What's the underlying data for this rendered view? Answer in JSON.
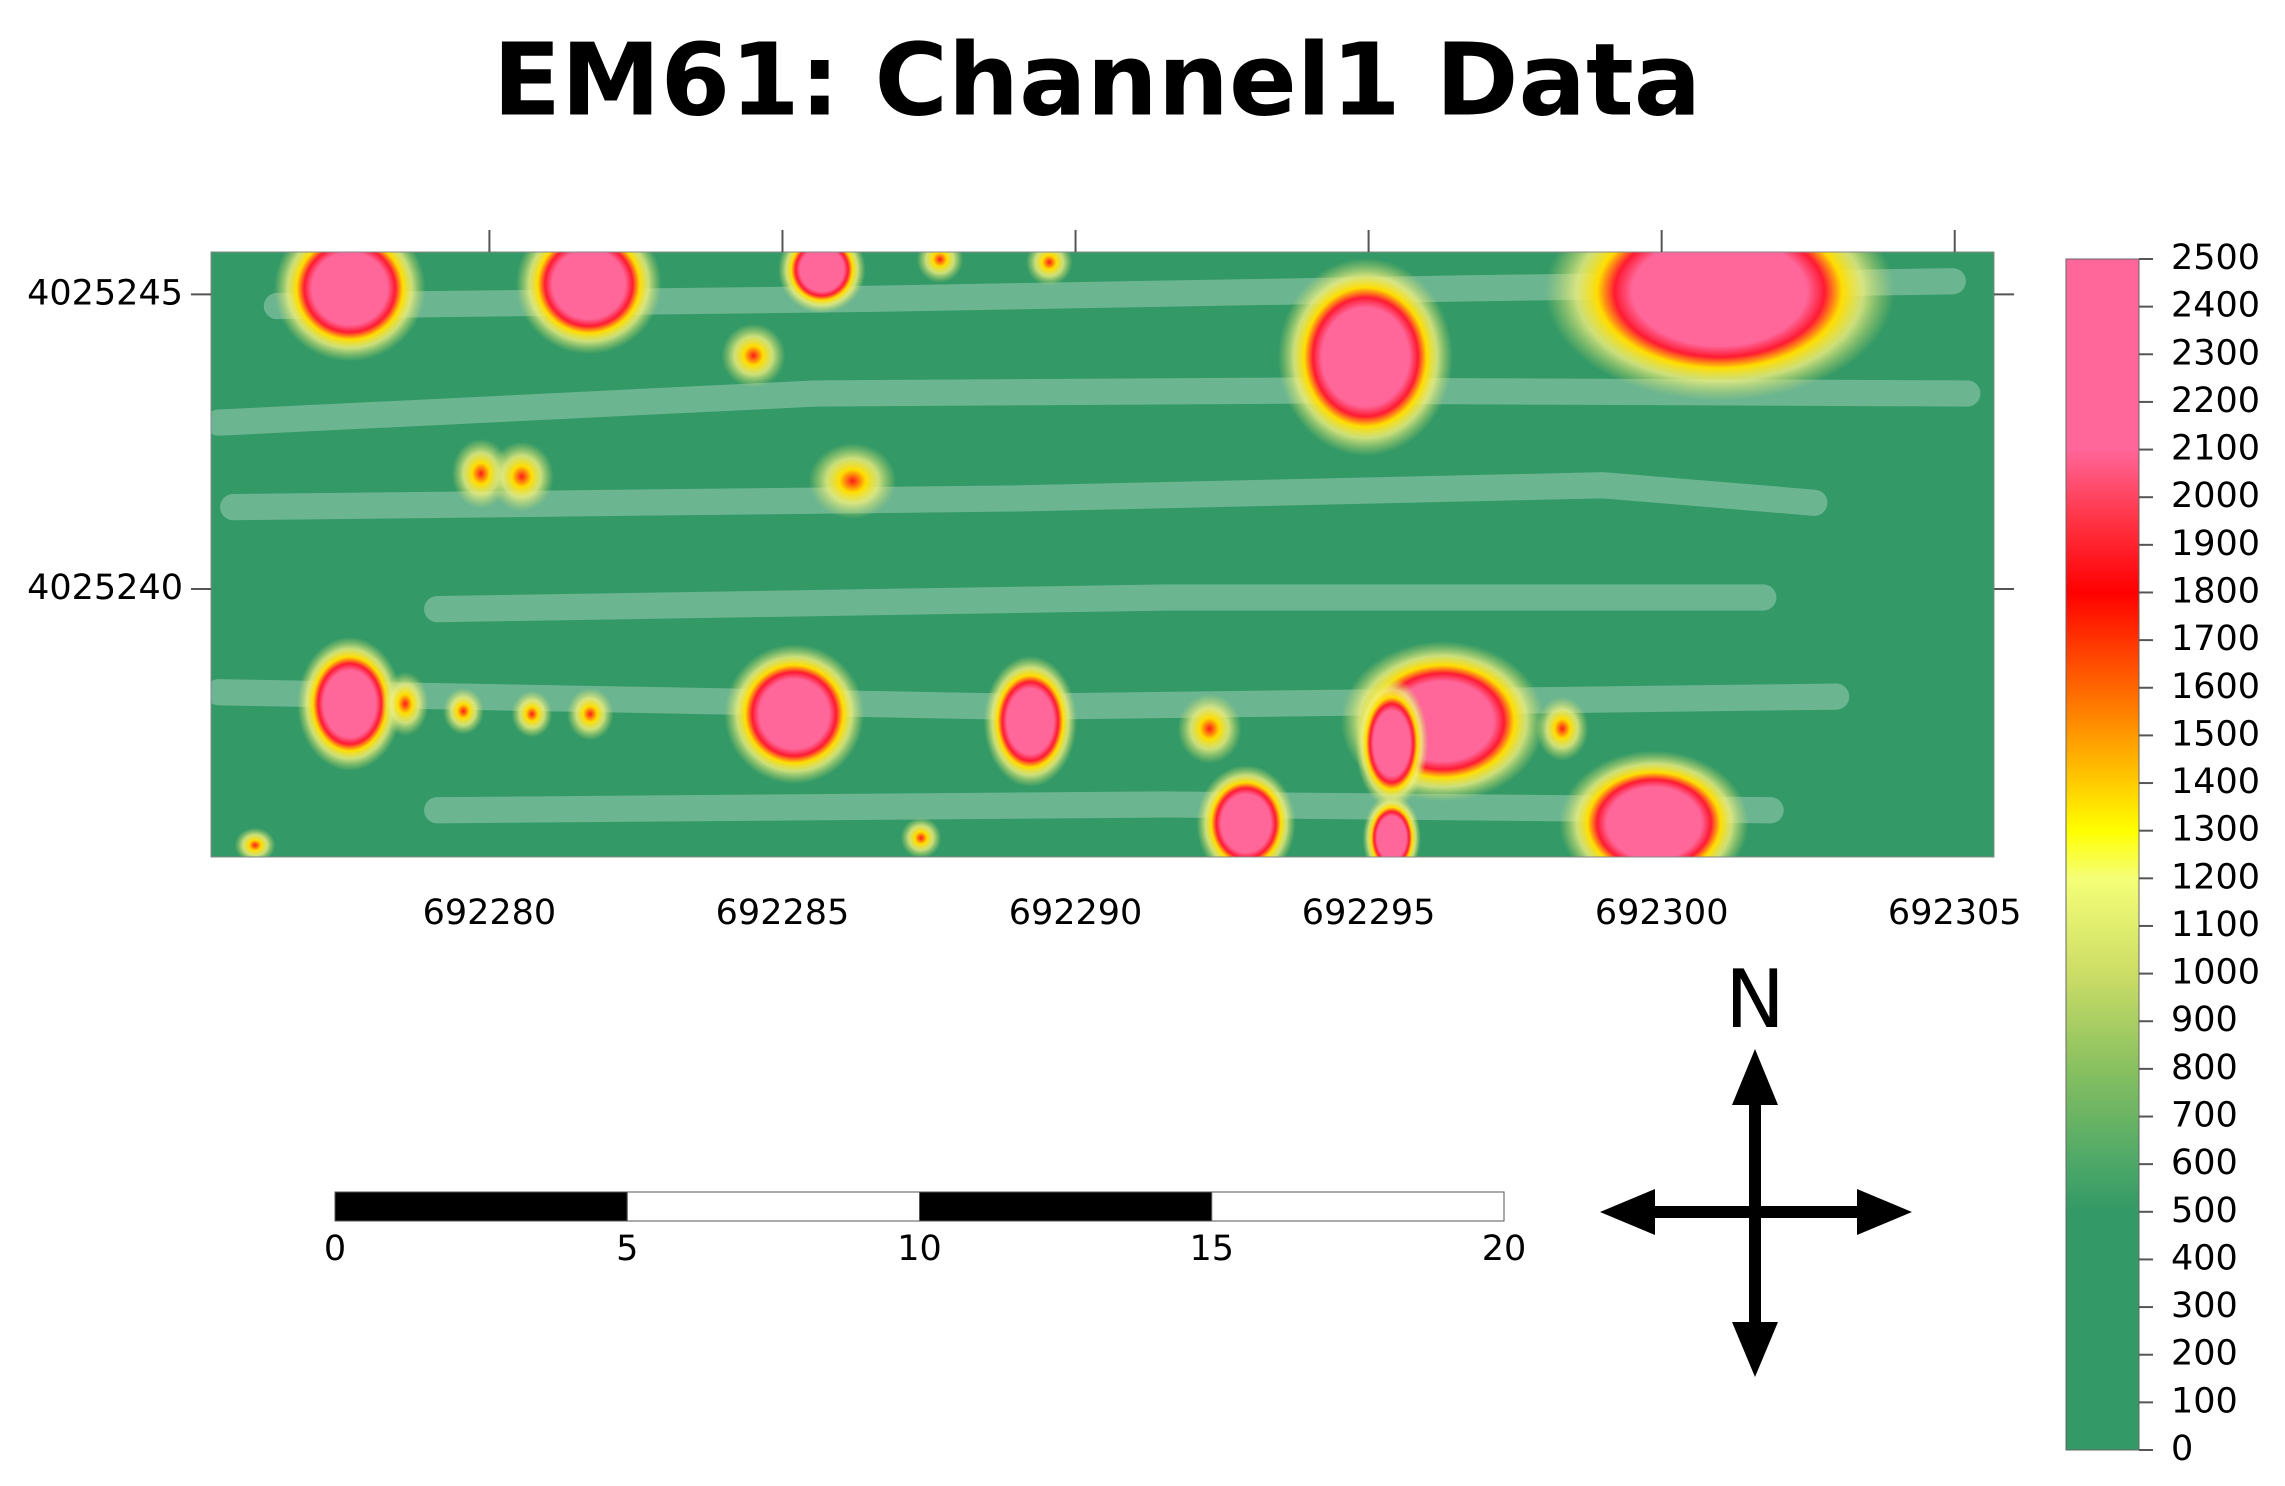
{
  "title": "EM61: Channel1 Data",
  "map": {
    "xlim": [
      692275.25,
      692305.67
    ],
    "ylim": [
      4025235.45,
      4025245.72
    ],
    "xticks": [
      692280,
      692285,
      692290,
      692295,
      692300,
      692305
    ],
    "yticks": [
      4025240,
      4025245
    ]
  },
  "colorbar": {
    "lim": [
      0,
      2500
    ],
    "ticks": [
      0,
      100,
      200,
      300,
      400,
      500,
      600,
      700,
      800,
      900,
      1000,
      1100,
      1200,
      1300,
      1400,
      1500,
      1600,
      1700,
      1800,
      1900,
      2000,
      2100,
      2200,
      2300,
      2400,
      2500
    ]
  },
  "scale_bar": {
    "lim": [
      0,
      20
    ],
    "ticks": [
      0,
      5,
      10,
      15,
      20
    ]
  },
  "north_label": "N"
}
